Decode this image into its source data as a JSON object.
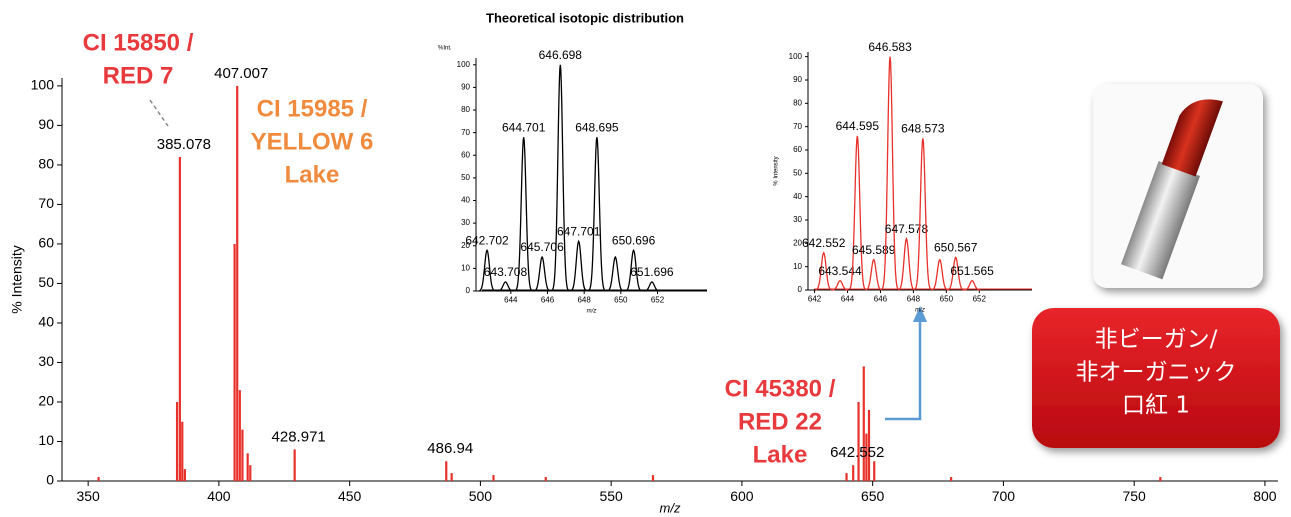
{
  "chart_data": [
    {
      "type": "stick",
      "xlabel": "m/z",
      "ylabel": "% Intensity",
      "color": "#e8312b",
      "x": [
        385.078,
        407.007,
        428.971,
        486.94,
        642.552
      ],
      "values": [
        82,
        100,
        8,
        5,
        4
      ],
      "minor_x": [
        354,
        384,
        386,
        387,
        406,
        408,
        409,
        411,
        412,
        489,
        505,
        525,
        566,
        640,
        644.6,
        646.6,
        647.6,
        648.6,
        650.6,
        680,
        760
      ],
      "minor_values": [
        1,
        20,
        15,
        3,
        60,
        23,
        13,
        7,
        4,
        2,
        1.5,
        1,
        1.5,
        2,
        20,
        29,
        12,
        18,
        5,
        1,
        1
      ],
      "xlim": [
        340,
        805
      ],
      "xticks": [
        350,
        400,
        450,
        500,
        550,
        600,
        650,
        700,
        750,
        800
      ],
      "ylim": [
        0,
        102
      ],
      "yticks": [
        0,
        10,
        20,
        30,
        40,
        50,
        60,
        70,
        80,
        90,
        100
      ],
      "annotations": [
        {
          "lines": [
            "CI 15850 /",
            "RED 7"
          ],
          "color": "#e8393c"
        },
        {
          "lines": [
            "CI 15985 /",
            "YELLOW 6",
            "Lake"
          ],
          "color": "#f08a3c"
        },
        {
          "lines": [
            "CI 45380 /",
            "RED 22",
            "Lake"
          ],
          "color": "#e8393c"
        }
      ]
    },
    {
      "type": "profile",
      "title": "Theoretical isotopic distribution",
      "xlabel": "m/z",
      "ylabel": "%Int.",
      "color": "#000000",
      "x": [
        642.702,
        643.708,
        644.701,
        645.706,
        646.698,
        647.701,
        648.695,
        650.696,
        651.696
      ],
      "values": [
        18,
        4,
        68,
        15,
        100,
        22,
        68,
        18,
        4
      ],
      "minor_x": [
        649.699
      ],
      "minor_values": [
        15
      ],
      "xlim": [
        642.1,
        654.7
      ],
      "xticks": [
        644,
        646,
        648,
        650,
        652
      ],
      "ylim": [
        0,
        103
      ],
      "yticks": [
        0,
        10,
        20,
        30,
        40,
        50,
        60,
        70,
        80,
        90,
        100
      ]
    },
    {
      "type": "profile",
      "xlabel": "m/z",
      "ylabel": "% Intensity",
      "color": "#e8312b",
      "x": [
        642.552,
        643.544,
        644.595,
        645.589,
        646.583,
        647.578,
        648.573,
        650.567,
        651.565
      ],
      "values": [
        16,
        4,
        66,
        13,
        100,
        22,
        65,
        14,
        4
      ],
      "minor_x": [
        649.6
      ],
      "minor_values": [
        13
      ],
      "xlim": [
        641.6,
        655.2
      ],
      "xticks": [
        642,
        644,
        646,
        648,
        650,
        652
      ],
      "ylim": [
        0,
        102
      ],
      "yticks": [
        0,
        10,
        20,
        30,
        40,
        50,
        60,
        70,
        80,
        90,
        100
      ]
    }
  ],
  "badge": {
    "lines": [
      "非ビーガン/",
      "非オーガニック",
      "口紅 1"
    ]
  }
}
